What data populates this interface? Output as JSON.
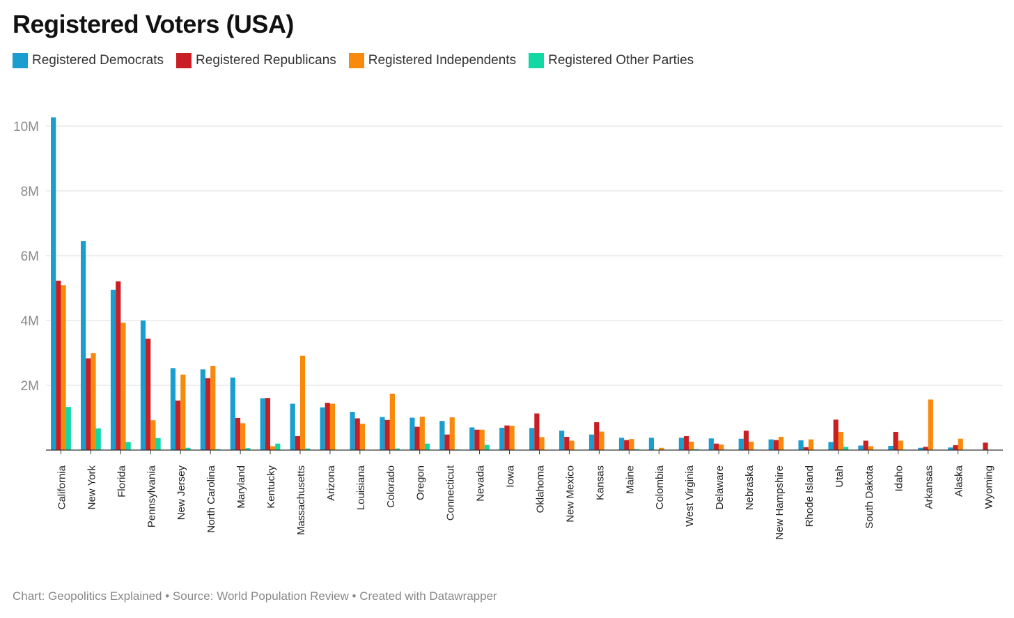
{
  "title": "Registered Voters (USA)",
  "footer": "Chart: Geopolitics Explained • Source: World Population Review • Created with Datawrapper",
  "chart_data": {
    "type": "bar",
    "title": "Registered Voters (USA)",
    "xlabel": "",
    "ylabel": "",
    "ylim": [
      0,
      10000000
    ],
    "yticks": [
      2000000,
      4000000,
      6000000,
      8000000,
      10000000
    ],
    "ytick_labels": [
      "2M",
      "4M",
      "6M",
      "8M",
      "10M"
    ],
    "grid": true,
    "legend_position": "top-left",
    "categories": [
      "California",
      "New York",
      "Florida",
      "Pennsylvania",
      "New Jersey",
      "North Carolina",
      "Maryland",
      "Kentucky",
      "Massachusetts",
      "Arizona",
      "Louisiana",
      "Colorado",
      "Oregon",
      "Connecticut",
      "Nevada",
      "Iowa",
      "Oklahoma",
      "New Mexico",
      "Kansas",
      "Maine",
      "Colombia",
      "West Virginia",
      "Delaware",
      "Nebraska",
      "New Hampshire",
      "Rhode Island",
      "Utah",
      "South Dakota",
      "Idaho",
      "Arkansas",
      "Alaska",
      "Wyoming"
    ],
    "series": [
      {
        "name": "Registered Democrats",
        "color": "#1a9ecf",
        "values": [
          10270000,
          6450000,
          4950000,
          4000000,
          2530000,
          2490000,
          2240000,
          1600000,
          1430000,
          1320000,
          1180000,
          1020000,
          1000000,
          900000,
          700000,
          690000,
          680000,
          600000,
          480000,
          380000,
          380000,
          380000,
          360000,
          350000,
          330000,
          300000,
          250000,
          140000,
          130000,
          70000,
          80000,
          0
        ]
      },
      {
        "name": "Registered Republicans",
        "color": "#c91f24",
        "values": [
          5230000,
          2830000,
          5210000,
          3440000,
          1530000,
          2220000,
          990000,
          1610000,
          430000,
          1460000,
          980000,
          930000,
          720000,
          480000,
          630000,
          760000,
          1130000,
          410000,
          860000,
          310000,
          0,
          430000,
          200000,
          600000,
          310000,
          90000,
          940000,
          290000,
          560000,
          100000,
          150000,
          230000
        ]
      },
      {
        "name": "Registered Independents",
        "color": "#f7890c",
        "values": [
          5090000,
          2990000,
          3930000,
          920000,
          2330000,
          2600000,
          830000,
          120000,
          2910000,
          1430000,
          810000,
          1740000,
          1030000,
          1010000,
          630000,
          750000,
          400000,
          290000,
          570000,
          340000,
          70000,
          260000,
          170000,
          260000,
          410000,
          330000,
          560000,
          120000,
          290000,
          1560000,
          350000,
          0
        ]
      },
      {
        "name": "Registered Other Parties",
        "color": "#11d8a5",
        "values": [
          1330000,
          670000,
          250000,
          370000,
          70000,
          30000,
          60000,
          200000,
          50000,
          0,
          0,
          50000,
          200000,
          20000,
          160000,
          0,
          0,
          0,
          0,
          30000,
          0,
          30000,
          0,
          0,
          0,
          0,
          100000,
          0,
          0,
          0,
          0,
          0
        ]
      }
    ]
  }
}
